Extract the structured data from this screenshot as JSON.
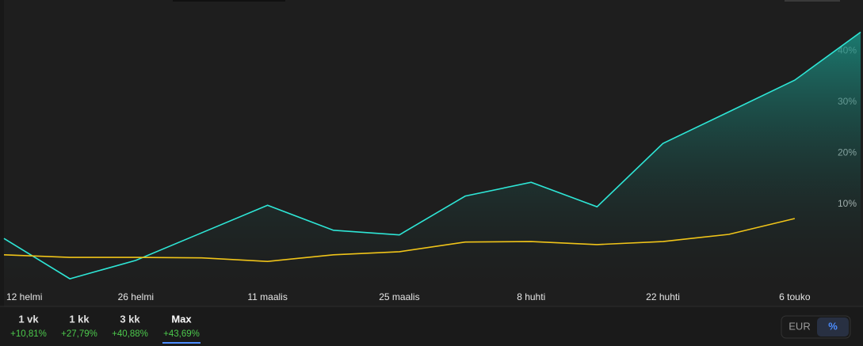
{
  "chart_data": {
    "type": "line",
    "categories": [
      "12 helmi",
      null,
      "26 helmi",
      null,
      "11 maalis",
      null,
      "25 maalis",
      null,
      "8 huhti",
      null,
      "22 huhti",
      null,
      "6 touko",
      null
    ],
    "series": [
      {
        "color": "#2ee6d6",
        "values": [
          3.3,
          -4.6,
          -1.0,
          4.4,
          9.8,
          4.9,
          4.0,
          11.6,
          14.3,
          9.5,
          21.9,
          28.1,
          34.3,
          43.7
        ]
      },
      {
        "color": "#f0c419",
        "values": [
          0.1,
          -0.4,
          -0.4,
          -0.5,
          -1.2,
          0.1,
          0.7,
          2.6,
          2.7,
          2.1,
          2.7,
          4.1,
          7.2,
          null
        ]
      }
    ],
    "ylim": [
      -6.6,
      50
    ],
    "yticks": [
      {
        "value": 10,
        "label": "10%"
      },
      {
        "value": 20,
        "label": "20%"
      },
      {
        "value": 30,
        "label": "30%"
      },
      {
        "value": 40,
        "label": "40%"
      }
    ],
    "grid": false
  },
  "periods": [
    {
      "label": "1 vk",
      "change": "+10,81%"
    },
    {
      "label": "1 kk",
      "change": "+27,79%"
    },
    {
      "label": "3 kk",
      "change": "+40,88%"
    },
    {
      "label": "Max",
      "change": "+43,69%"
    }
  ],
  "toggle": [
    "EUR",
    "%"
  ]
}
